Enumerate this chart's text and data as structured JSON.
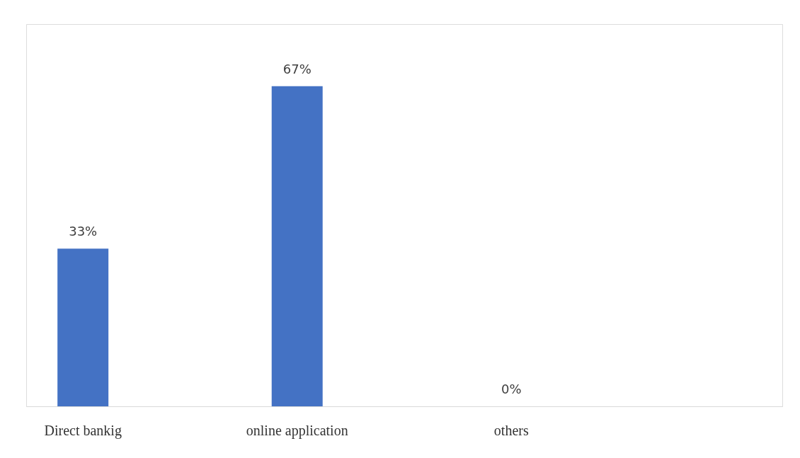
{
  "chart_data": {
    "type": "bar",
    "categories": [
      "Direct bankig",
      "online application",
      "others",
      null
    ],
    "values": [
      33,
      67,
      0,
      null
    ],
    "colors": [
      "#4472c4",
      "#4472c4",
      "#4472c4",
      "#4472c4"
    ],
    "value_labels": [
      "33%",
      "67%",
      "0%",
      null
    ],
    "ylim": [
      0,
      80
    ],
    "grid": false,
    "tick_labels": "x",
    "legend": false
  }
}
